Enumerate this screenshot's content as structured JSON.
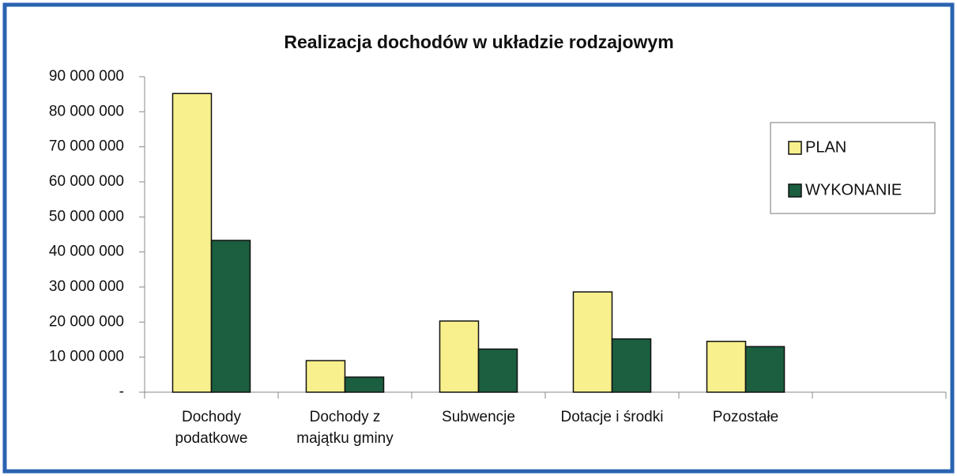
{
  "chart_data": {
    "type": "bar",
    "title": "Realizacja dochodów w układzie rodzajowym",
    "categories": [
      "Dochody podatkowe",
      "Dochody z majątku gminy",
      "Subwencje",
      "Dotacje i środki",
      "Pozostałe",
      null
    ],
    "series": [
      {
        "name": "PLAN",
        "color": "#f8f08c",
        "values": [
          85200000,
          9000000,
          20300000,
          28600000,
          14500000,
          null
        ]
      },
      {
        "name": "WYKONANIE",
        "color": "#1b5e40",
        "values": [
          43300000,
          4300000,
          12300000,
          15200000,
          13000000,
          null
        ]
      }
    ],
    "ylim": [
      0,
      90000000
    ],
    "yticks": [
      {
        "value": 0,
        "label": "-"
      },
      {
        "value": 10000000,
        "label": "10 000 000"
      },
      {
        "value": 20000000,
        "label": "20 000 000"
      },
      {
        "value": 30000000,
        "label": "30 000 000"
      },
      {
        "value": 40000000,
        "label": "40 000 000"
      },
      {
        "value": 50000000,
        "label": "50 000 000"
      },
      {
        "value": 60000000,
        "label": "60 000 000"
      },
      {
        "value": 70000000,
        "label": "70 000 000"
      },
      {
        "value": 80000000,
        "label": "80 000 000"
      },
      {
        "value": 90000000,
        "label": "90 000 000"
      }
    ],
    "grid": false,
    "legend": "right"
  }
}
